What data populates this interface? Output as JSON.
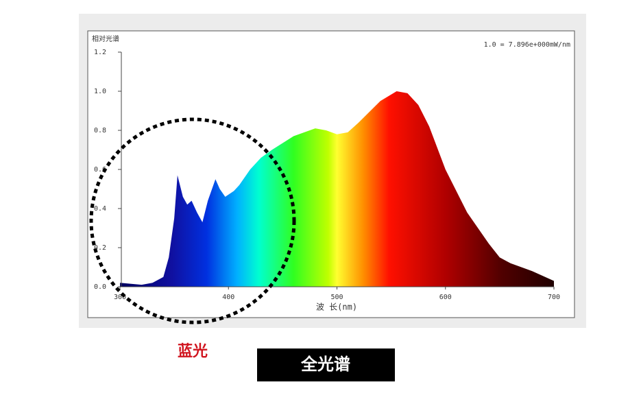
{
  "chart_data": {
    "type": "area",
    "y_label": "相对光谱",
    "x_label": "波 长(nm)",
    "annotation": "1.0 = 7.896e+000mW/nm",
    "callout": "蓝光",
    "caption": "全光谱",
    "x": [
      300,
      320,
      330,
      340,
      345,
      350,
      353,
      358,
      362,
      366,
      371,
      376,
      381,
      388,
      392,
      397,
      405,
      410,
      420,
      430,
      440,
      460,
      480,
      490,
      500,
      510,
      520,
      540,
      555,
      565,
      575,
      585,
      600,
      620,
      640,
      650,
      660,
      680,
      700
    ],
    "values": [
      0.02,
      0.01,
      0.02,
      0.05,
      0.15,
      0.35,
      0.57,
      0.46,
      0.42,
      0.44,
      0.38,
      0.33,
      0.44,
      0.55,
      0.5,
      0.46,
      0.49,
      0.52,
      0.6,
      0.66,
      0.7,
      0.77,
      0.81,
      0.8,
      0.78,
      0.79,
      0.84,
      0.95,
      1.0,
      0.99,
      0.93,
      0.82,
      0.6,
      0.38,
      0.22,
      0.15,
      0.12,
      0.08,
      0.03
    ],
    "xlim": [
      300,
      700
    ],
    "ylim": [
      0,
      1.2
    ],
    "xticks": [
      300,
      400,
      500,
      600,
      700
    ],
    "yticks": [
      {
        "value": 0,
        "label": "0.0"
      },
      0.2,
      0.4,
      0.6,
      0.8,
      {
        "value": 1,
        "label": "1.0"
      },
      1.2
    ]
  }
}
